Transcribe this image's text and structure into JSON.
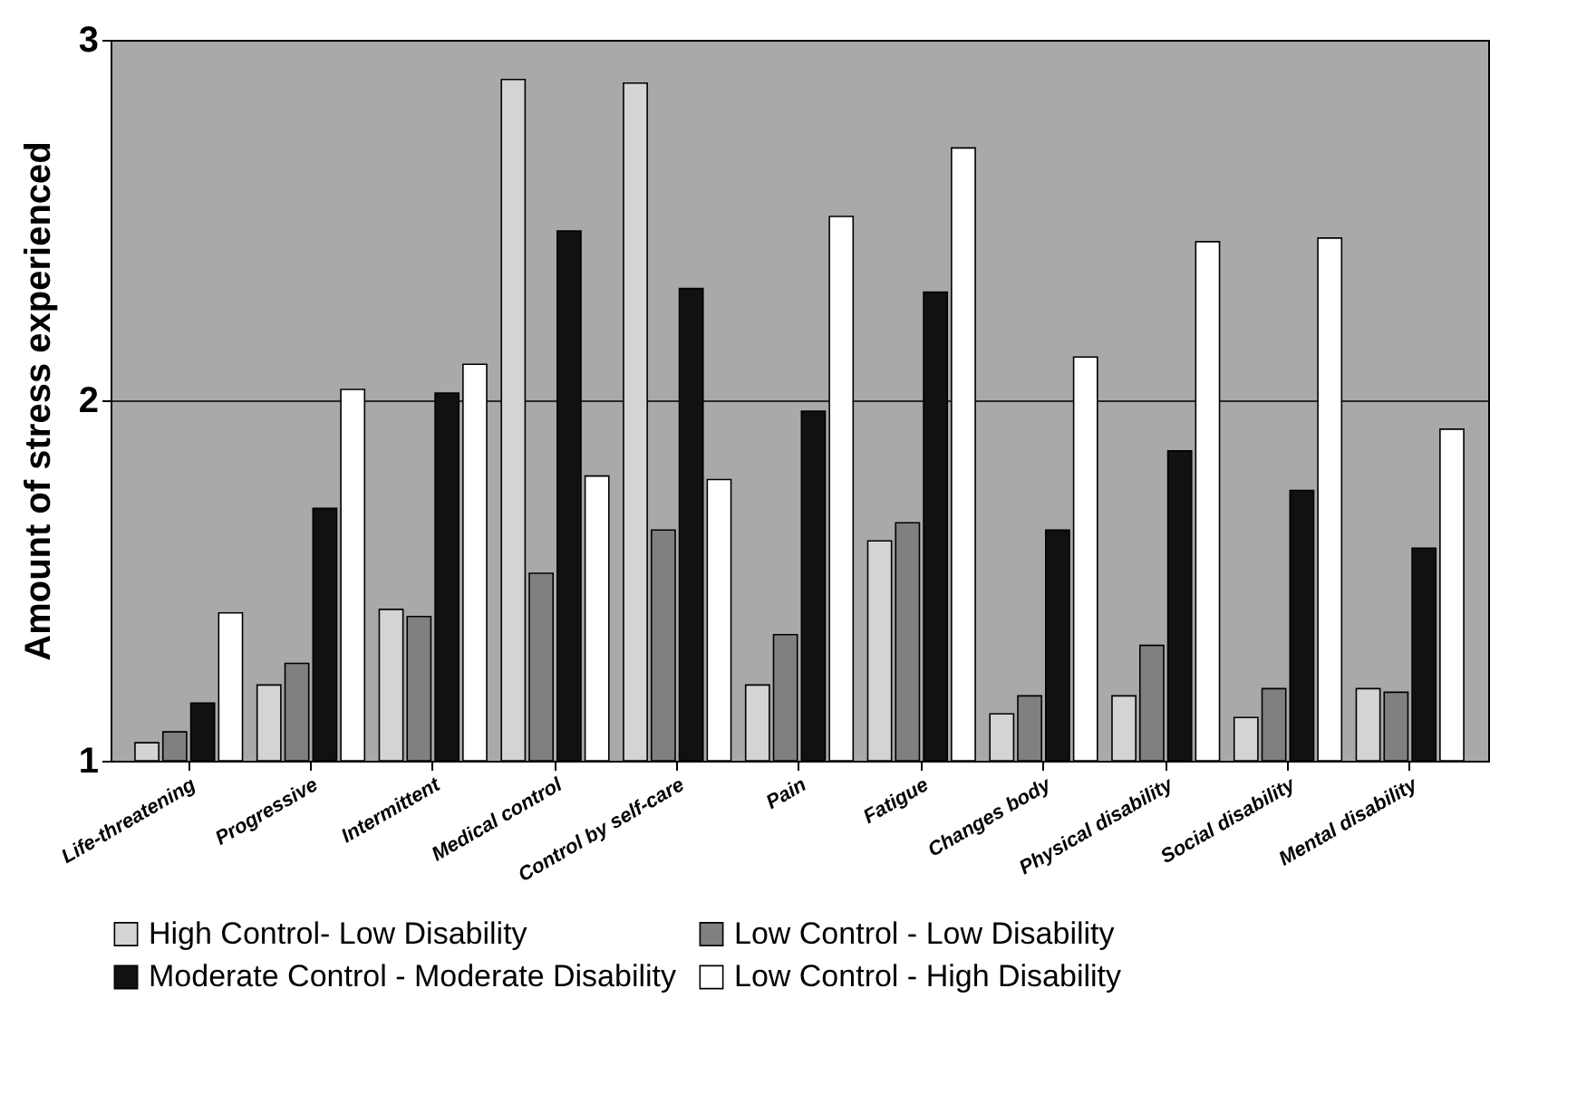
{
  "chart_data": {
    "type": "bar",
    "ylabel": "Amount of stress experienced",
    "categories": [
      "Life-threatening",
      "Progressive",
      "Intermittent",
      "Medical control",
      "Control by self-care",
      "Pain",
      "Fatigue",
      "Changes body",
      "Physical disability",
      "Social disability",
      "Mental disability"
    ],
    "series": [
      {
        "name": "High Control- Low Disability",
        "color": "#d4d4d4",
        "values": [
          1.05,
          1.21,
          1.42,
          2.89,
          2.88,
          1.21,
          1.61,
          1.13,
          1.18,
          1.12,
          1.2
        ]
      },
      {
        "name": "Low Control - Low Disability",
        "color": "#808080",
        "values": [
          1.08,
          1.27,
          1.4,
          1.52,
          1.64,
          1.35,
          1.66,
          1.18,
          1.32,
          1.2,
          1.19
        ]
      },
      {
        "name": "Moderate Control - Moderate Disability",
        "color": "#111111",
        "values": [
          1.16,
          1.7,
          2.02,
          2.47,
          2.31,
          1.97,
          2.3,
          1.64,
          1.86,
          1.75,
          1.59
        ]
      },
      {
        "name": "Low Control - High Disability",
        "color": "#ffffff",
        "values": [
          1.41,
          2.03,
          2.1,
          1.79,
          1.78,
          2.51,
          2.7,
          2.12,
          2.44,
          2.45,
          1.92
        ]
      }
    ],
    "ylim": [
      1,
      3
    ],
    "yticks": [
      1,
      2,
      3
    ],
    "grid": "y",
    "legend": "bottom"
  }
}
